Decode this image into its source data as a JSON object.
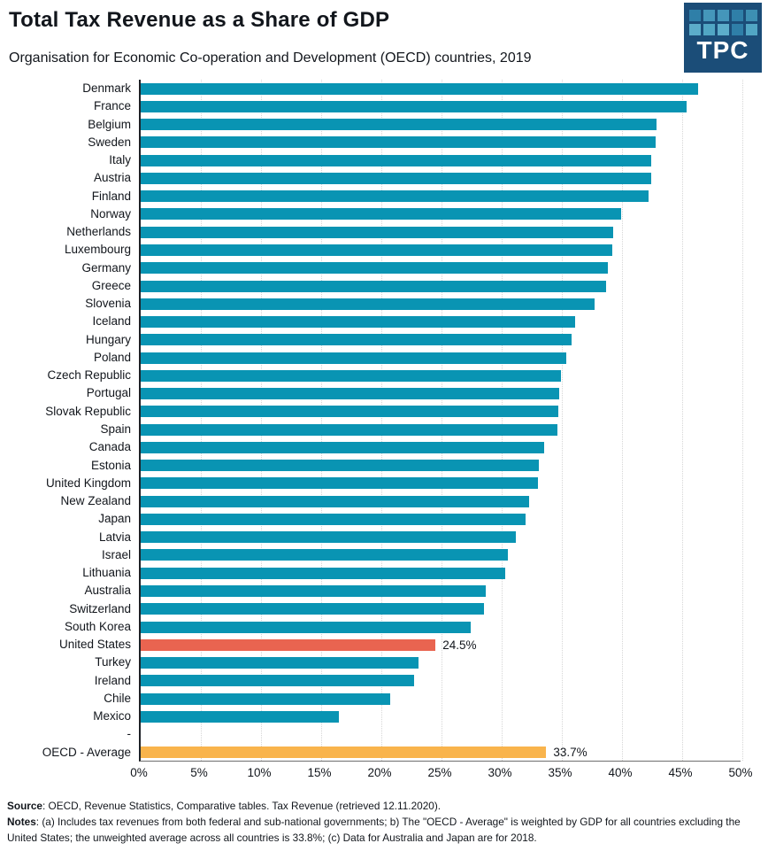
{
  "header": {
    "title": "Total Tax Revenue as a Share of GDP",
    "subtitle": "Organisation for Economic Co-operation and Development (OECD) countries, 2019"
  },
  "logo": {
    "text": "TPC",
    "background": "#1b4d78",
    "square_colors": [
      "#2f7fa8",
      "#4596ba",
      "#4596ba",
      "#2f7fa8",
      "#3d8fb3",
      "#5cadca",
      "#51a6c4",
      "#5cadca",
      "#2f7fa8",
      "#51a6c4"
    ]
  },
  "colors": {
    "default": "#0994b3",
    "highlight": "#e96450",
    "average": "#f9b44c",
    "grid": "#d6d6d6",
    "axis": "#1d2126",
    "text": "#12161c"
  },
  "chart_data": {
    "type": "bar",
    "orientation": "horizontal",
    "title": "Total Tax Revenue as a Share of GDP",
    "subtitle": "Organisation for Economic Co-operation and Development (OECD) countries, 2019",
    "xlabel": "",
    "ylabel": "",
    "unit": "%",
    "xlim": [
      0,
      50
    ],
    "x_ticks": [
      0,
      5,
      10,
      15,
      20,
      25,
      30,
      35,
      40,
      45,
      50
    ],
    "x_tick_labels": [
      "0%",
      "5%",
      "10%",
      "15%",
      "20%",
      "25%",
      "30%",
      "35%",
      "40%",
      "45%",
      "50%"
    ],
    "grid": "vertical dotted gridlines every 5%",
    "legend": "none",
    "categories": [
      "Denmark",
      "France",
      "Belgium",
      "Sweden",
      "Italy",
      "Austria",
      "Finland",
      "Norway",
      "Netherlands",
      "Luxembourg",
      "Germany",
      "Greece",
      "Slovenia",
      "Iceland",
      "Hungary",
      "Poland",
      "Czech Republic",
      "Portugal",
      "Slovak Republic",
      "Spain",
      "Canada",
      "Estonia",
      "United Kingdom",
      "New Zealand",
      "Japan",
      "Latvia",
      "Israel",
      "Lithuania",
      "Australia",
      "Switzerland",
      "South Korea",
      "United States",
      "Turkey",
      "Ireland",
      "Chile",
      "Mexico",
      "-",
      "OECD - Average"
    ],
    "values": [
      46.3,
      45.4,
      42.9,
      42.8,
      42.4,
      42.4,
      42.2,
      39.9,
      39.3,
      39.2,
      38.8,
      38.7,
      37.7,
      36.1,
      35.8,
      35.4,
      34.9,
      34.8,
      34.7,
      34.6,
      33.5,
      33.1,
      33.0,
      32.3,
      32.0,
      31.2,
      30.5,
      30.3,
      28.7,
      28.5,
      27.4,
      24.5,
      23.1,
      22.7,
      20.7,
      16.5,
      null,
      33.7
    ],
    "bar_color_keys": {
      "United States": "highlight",
      "OECD - Average": "average"
    },
    "annotations": {
      "United States": "24.5%",
      "OECD - Average": "33.7%"
    }
  },
  "footer": {
    "source_label": "Source",
    "source_text": ": OECD, Revenue Statistics, Comparative tables. Tax Revenue (retrieved 12.11.2020).",
    "notes_label": "Notes",
    "notes_text": ": (a) Includes tax revenues from both federal and sub-national governments; b) The \"OECD - Average\" is weighted by GDP for all countries excluding the United States; the unweighted average across all countries is 33.8%; (c) Data for Australia and Japan are for 2018."
  }
}
